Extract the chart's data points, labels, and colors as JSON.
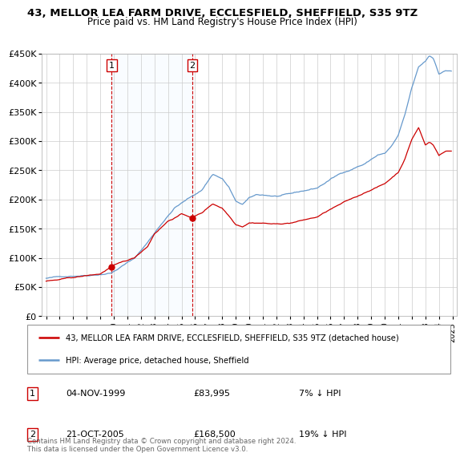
{
  "title": "43, MELLOR LEA FARM DRIVE, ECCLESFIELD, SHEFFIELD, S35 9TZ",
  "subtitle": "Price paid vs. HM Land Registry's House Price Index (HPI)",
  "legend_label_red": "43, MELLOR LEA FARM DRIVE, ECCLESFIELD, SHEFFIELD, S35 9TZ (detached house)",
  "legend_label_blue": "HPI: Average price, detached house, Sheffield",
  "transaction1_date": "04-NOV-1999",
  "transaction1_price": "£83,995",
  "transaction1_hpi": "7% ↓ HPI",
  "transaction2_date": "21-OCT-2005",
  "transaction2_price": "£168,500",
  "transaction2_hpi": "19% ↓ HPI",
  "footer": "Contains HM Land Registry data © Crown copyright and database right 2024.\nThis data is licensed under the Open Government Licence v3.0.",
  "transaction1_x": 1999.84,
  "transaction1_y": 83995,
  "transaction2_x": 2005.8,
  "transaction2_y": 168500,
  "vline1_x": 1999.84,
  "vline2_x": 2005.8,
  "ylim": [
    0,
    450000
  ],
  "xlim_start": 1995,
  "xlim_end": 2025,
  "color_red": "#cc0000",
  "color_blue": "#6699cc",
  "color_vline": "#cc0000",
  "color_shade": "#ddeeff",
  "background_color": "#ffffff",
  "grid_color": "#cccccc"
}
